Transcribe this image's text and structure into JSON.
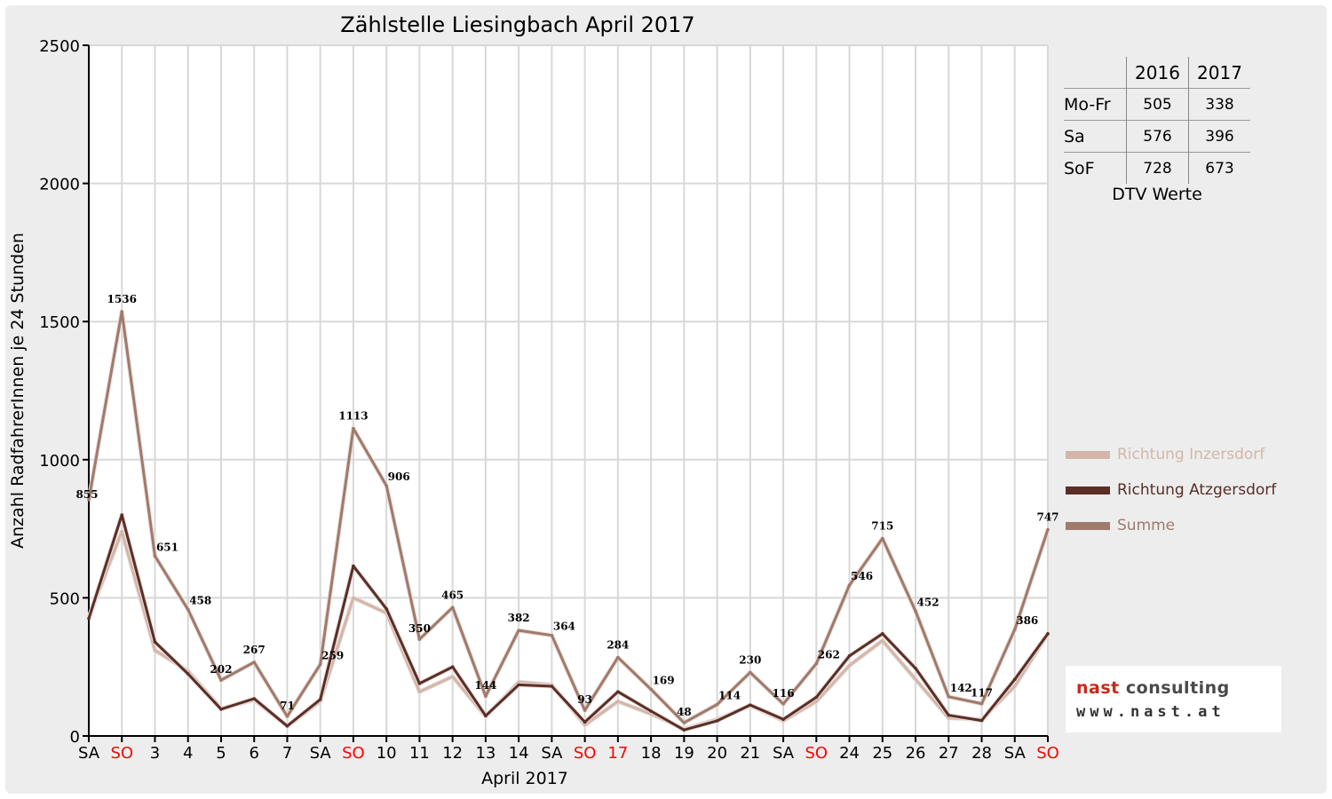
{
  "chart_data": {
    "type": "line",
    "title": "Zählstelle Liesingbach April 2017",
    "xlabel": "April 2017",
    "ylabel": "Anzahl RadfahrerInnen je 24 Stunden",
    "ylim": [
      0,
      2500
    ],
    "yticks": [
      0,
      500,
      1000,
      1500,
      2000,
      2500
    ],
    "grid": true,
    "legend_position": "right",
    "categories": [
      "SA",
      "SO",
      "3",
      "4",
      "5",
      "6",
      "7",
      "SA",
      "SO",
      "10",
      "11",
      "12",
      "13",
      "14",
      "SA",
      "SO",
      "17",
      "18",
      "19",
      "20",
      "21",
      "SA",
      "SO",
      "24",
      "25",
      "26",
      "27",
      "28",
      "SA",
      "SO"
    ],
    "red_categories": [
      1,
      8,
      15,
      16,
      22,
      29
    ],
    "series": [
      {
        "name": "Richtung Inzersdorf",
        "color": "#d3b6aa",
        "values": [
          430,
          740,
          310,
          235,
          100,
          130,
          35,
          125,
          500,
          445,
          160,
          215,
          70,
          195,
          185,
          40,
          125,
          80,
          25,
          60,
          110,
          55,
          125,
          255,
          345,
          205,
          65,
          60,
          180,
          370
        ]
      },
      {
        "name": "Richtung Atzgersdorf",
        "color": "#5a2e26",
        "values": [
          425,
          800,
          340,
          225,
          97,
          135,
          36,
          132,
          615,
          460,
          190,
          250,
          73,
          185,
          180,
          50,
          160,
          90,
          22,
          55,
          112,
          60,
          140,
          290,
          370,
          245,
          75,
          56,
          205,
          370
        ]
      },
      {
        "name": "Summe",
        "color": "#a07a6c",
        "values": [
          855,
          1536,
          651,
          458,
          202,
          267,
          71,
          259,
          1113,
          906,
          350,
          465,
          144,
          382,
          364,
          93,
          284,
          169,
          48,
          114,
          230,
          116,
          262,
          546,
          715,
          452,
          142,
          117,
          386,
          747
        ]
      }
    ],
    "data_labels": [
      855,
      1536,
      651,
      458,
      202,
      267,
      71,
      259,
      1113,
      906,
      350,
      465,
      144,
      382,
      364,
      93,
      284,
      169,
      48,
      114,
      230,
      116,
      262,
      546,
      715,
      452,
      142,
      117,
      386,
      747
    ]
  },
  "colors": {
    "grid": "#d8d8d8",
    "panel": "#ededed",
    "weekend_red": "#ff0000"
  },
  "dtv": {
    "years": [
      "2016",
      "2017"
    ],
    "rows": [
      {
        "label": "Mo-Fr",
        "v2016": "505",
        "v2017": "338"
      },
      {
        "label": "Sa",
        "v2016": "576",
        "v2017": "396"
      },
      {
        "label": "SoF",
        "v2016": "728",
        "v2017": "673"
      }
    ],
    "caption": "DTV Werte"
  },
  "logo": {
    "word1": "nast",
    "word2": "consulting",
    "url": "www.nast.at"
  }
}
